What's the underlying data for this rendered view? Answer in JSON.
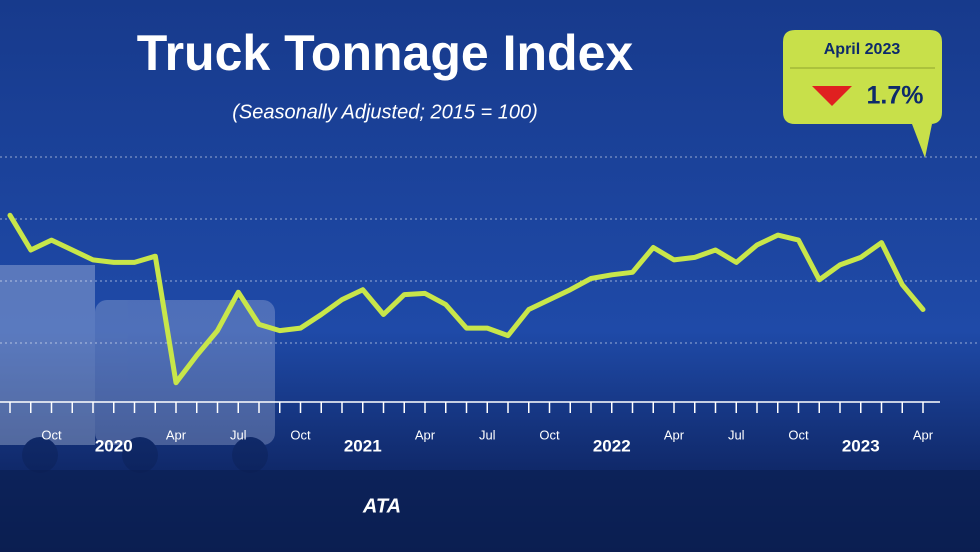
{
  "chart_data": {
    "type": "line",
    "title": "Truck Tonnage Index",
    "subtitle": "(Seasonally Adjusted; 2015 = 100)",
    "callout": {
      "title": "April 2023",
      "change": "1.7%"
    },
    "logo": "ATA",
    "categories": [
      null,
      null,
      "Oct",
      null,
      null,
      null,
      null,
      null,
      "Apr",
      null,
      null,
      "Jul",
      null,
      null,
      "Oct",
      null,
      null,
      null,
      null,
      null,
      "Apr",
      null,
      null,
      "Jul",
      null,
      null,
      "Oct",
      null,
      null,
      null,
      null,
      null,
      "Apr",
      null,
      null,
      "Jul",
      null,
      null,
      "Oct",
      null,
      null,
      null,
      null,
      null,
      "Apr"
    ],
    "years": [
      "2020",
      "2021",
      "2022",
      "2023"
    ],
    "series": [
      {
        "name": "Truck Tonnage Index",
        "color": "#c8e64a",
        "values": [
          115.3,
          112.5,
          113.3,
          112.5,
          111.7,
          111.5,
          111.5,
          112.0,
          101.8,
          104.0,
          106.0,
          109.1,
          106.5,
          106.0,
          106.2,
          107.3,
          108.5,
          109.3,
          107.3,
          108.9,
          109.0,
          108.1,
          106.2,
          106.2,
          105.6,
          107.7,
          108.5,
          109.3,
          110.2,
          110.5,
          110.7,
          112.7,
          111.7,
          111.9,
          112.5,
          111.5,
          112.9,
          113.7,
          113.3,
          110.1,
          111.3,
          111.9,
          113.1,
          109.7,
          107.7
        ]
      }
    ],
    "ylim": [
      100,
      125
    ],
    "yticks": [
      105,
      110,
      115,
      120
    ],
    "grid": true
  }
}
